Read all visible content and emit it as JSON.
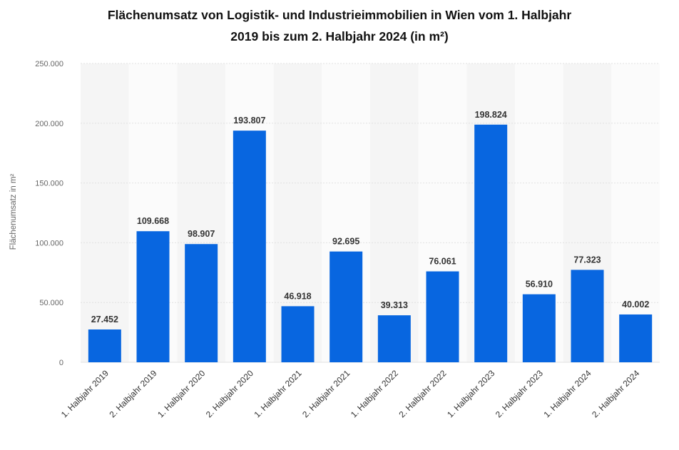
{
  "chart_data": {
    "type": "bar",
    "title_lines": [
      "Flächenumsatz von Logistik- und Industrieimmobilien in Wien vom 1. Halbjahr",
      "2019 bis zum 2. Halbjahr 2024 (in m²)"
    ],
    "xlabel": "",
    "ylabel": "Flächenumsatz in m²",
    "categories": [
      "1. Halbjahr 2019",
      "2. Halbjahr 2019",
      "1. Halbjahr 2020",
      "2. Halbjahr 2020",
      "1. Halbjahr 2021",
      "2. Halbjahr 2021",
      "1. Halbjahr 2022",
      "2. Halbjahr 2022",
      "1. Halbjahr 2023",
      "2. Halbjahr 2023",
      "1. Halbjahr 2024",
      "2. Halbjahr 2024"
    ],
    "values": [
      27452,
      109668,
      98907,
      193807,
      46918,
      92695,
      39313,
      76061,
      198824,
      56910,
      77323,
      40002
    ],
    "value_labels": [
      "27.452",
      "109.668",
      "98.907",
      "193.807",
      "46.918",
      "92.695",
      "39.313",
      "76.061",
      "198.824",
      "56.910",
      "77.323",
      "40.002"
    ],
    "ylim": [
      0,
      250000
    ],
    "yticks": [
      0,
      50000,
      100000,
      150000,
      200000,
      250000
    ],
    "ytick_labels": [
      "0",
      "50.000",
      "100.000",
      "150.000",
      "200.000",
      "250.000"
    ],
    "grid": true,
    "bar_color": "#0866e0",
    "band_colors": [
      "#f5f5f5",
      "#fbfbfb"
    ]
  }
}
